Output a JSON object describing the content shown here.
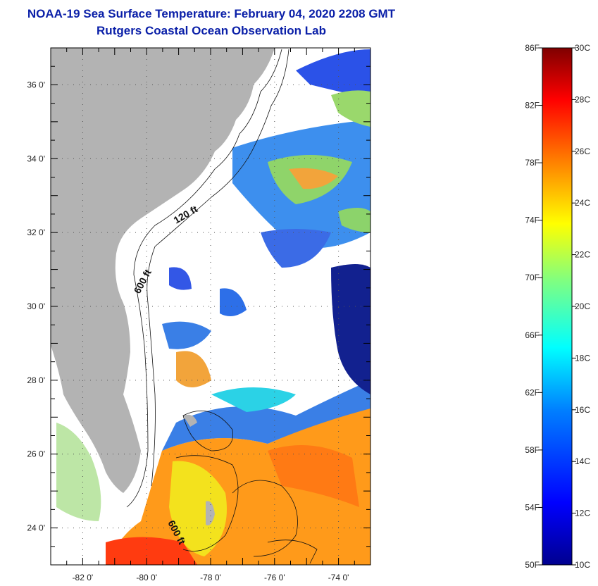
{
  "title": {
    "line1": "NOAA-19 Sea Surface Temperature:  February 04, 2020 2208 GMT",
    "line2": "Rutgers Coastal Ocean Observation Lab"
  },
  "map": {
    "lat_range": [
      23,
      37
    ],
    "lon_range": [
      -83,
      -73
    ],
    "lat_ticks": [
      {
        "value": 24,
        "label": "24 0'"
      },
      {
        "value": 26,
        "label": "26 0'"
      },
      {
        "value": 28,
        "label": "28 0'"
      },
      {
        "value": 30,
        "label": "30 0'"
      },
      {
        "value": 32,
        "label": "32 0'"
      },
      {
        "value": 34,
        "label": "34 0'"
      },
      {
        "value": 36,
        "label": "36 0'"
      }
    ],
    "lon_ticks": [
      {
        "value": -82,
        "label": "-82 0'"
      },
      {
        "value": -80,
        "label": "-80 0'"
      },
      {
        "value": -78,
        "label": "-78 0'"
      },
      {
        "value": -76,
        "label": "-76 0'"
      },
      {
        "value": -74,
        "label": "-74 0'"
      }
    ],
    "contour_labels": [
      "120 ft",
      "600 ft",
      "600 ft"
    ],
    "land_color": "#b3b3b3",
    "cloud_color": "#ffffff"
  },
  "colorbar": {
    "fahrenheit": [
      "86F",
      "82F",
      "78F",
      "74F",
      "70F",
      "66F",
      "62F",
      "58F",
      "54F",
      "50F"
    ],
    "celsius": [
      "30C",
      "28C",
      "26C",
      "24C",
      "22C",
      "20C",
      "18C",
      "16C",
      "14C",
      "12C",
      "10C"
    ],
    "colors": [
      "#7f0000",
      "#ff0000",
      "#ff8000",
      "#ffff00",
      "#80ff80",
      "#00ffff",
      "#0080ff",
      "#0000ff",
      "#00008f"
    ]
  }
}
